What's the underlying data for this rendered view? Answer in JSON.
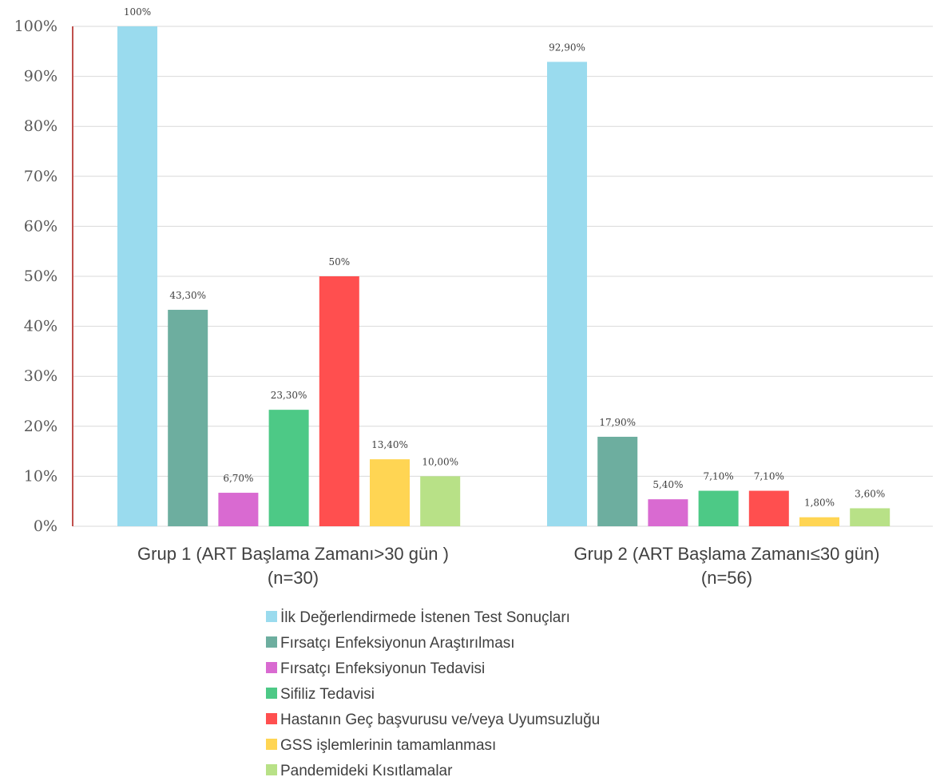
{
  "chart_data": {
    "type": "bar",
    "ylim": [
      0,
      100
    ],
    "y_ticks": [
      "0%",
      "10%",
      "20%",
      "30%",
      "40%",
      "50%",
      "60%",
      "70%",
      "80%",
      "90%",
      "100%"
    ],
    "grid": "horizontal",
    "legend_position": "bottom",
    "categories": [
      [
        "Grup 1 (ART Başlama Zamanı>30 gün )",
        "(n=30)"
      ],
      [
        "Grup 2 (ART Başlama Zamanı≤30 gün)",
        "(n=56)"
      ]
    ],
    "series": [
      {
        "name": "İlk Değerlendirmede İstenen Test Sonuçları",
        "color": "#9ADBEE",
        "values": [
          100,
          92.9
        ],
        "labels": [
          "100%",
          "92,90%"
        ]
      },
      {
        "name": "Fırsatçı Enfeksiyonun Araştırılması",
        "color": "#6DAE9F",
        "values": [
          43.3,
          17.9
        ],
        "labels": [
          "43,30%",
          "17,90%"
        ]
      },
      {
        "name": "Fırsatçı Enfeksiyonun Tedavisi",
        "color": "#D96AD1",
        "values": [
          6.7,
          5.4
        ],
        "labels": [
          "6,70%",
          "5,40%"
        ]
      },
      {
        "name": "Sifiliz Tedavisi",
        "color": "#4DC986",
        "values": [
          23.3,
          7.1
        ],
        "labels": [
          "23,30%",
          "7,10%"
        ]
      },
      {
        "name": "Hastanın Geç başvurusu ve/veya Uyumsuzluğu",
        "color": "#FF4F4F",
        "values": [
          50,
          7.1
        ],
        "labels": [
          "50%",
          "7,10%"
        ]
      },
      {
        "name": "GSS işlemlerinin tamamlanması",
        "color": "#FFD553",
        "values": [
          13.4,
          1.8
        ],
        "labels": [
          "13,40%",
          "1,80%"
        ]
      },
      {
        "name": "Pandemideki Kısıtlamalar",
        "color": "#B8E187",
        "values": [
          10,
          3.6
        ],
        "labels": [
          "10,00%",
          "3,60%"
        ]
      }
    ],
    "axis_color": "#C0504D",
    "grid_color": "#D9D9D9"
  }
}
